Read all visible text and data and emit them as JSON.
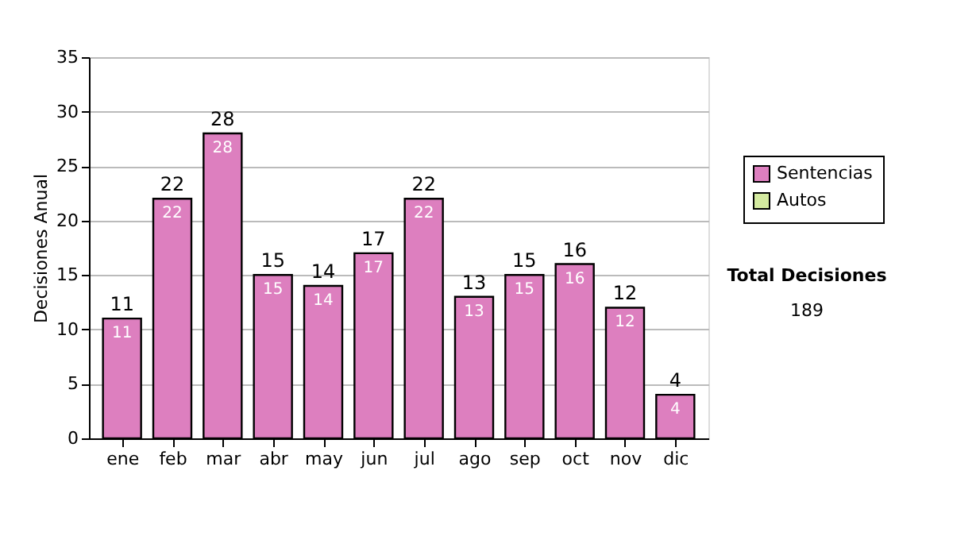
{
  "chart_data": {
    "type": "bar",
    "ylabel": "Decisiones Anual",
    "categories": [
      "ene",
      "feb",
      "mar",
      "abr",
      "may",
      "jun",
      "jul",
      "ago",
      "sep",
      "oct",
      "nov",
      "dic"
    ],
    "series": [
      {
        "name": "Sentencias",
        "color": "#dd7fbf",
        "values": [
          11,
          22,
          28,
          15,
          14,
          17,
          22,
          13,
          15,
          16,
          12,
          4
        ]
      },
      {
        "name": "Autos",
        "color": "#d4eaa0",
        "values": [
          null,
          null,
          null,
          null,
          null,
          null,
          null,
          null,
          null,
          null,
          null,
          null
        ]
      }
    ],
    "stacked": true,
    "data_labels": true,
    "totals": [
      "11",
      "22",
      "28",
      "15",
      "14",
      "17",
      "22",
      "13",
      "15",
      "16",
      "12",
      "4"
    ],
    "ylim": [
      0,
      35
    ],
    "yticks": [
      0,
      5,
      10,
      15,
      20,
      25,
      30,
      35
    ],
    "grid": "y",
    "legend": "right",
    "annotations": [
      "Total Decisiones",
      "189"
    ]
  }
}
